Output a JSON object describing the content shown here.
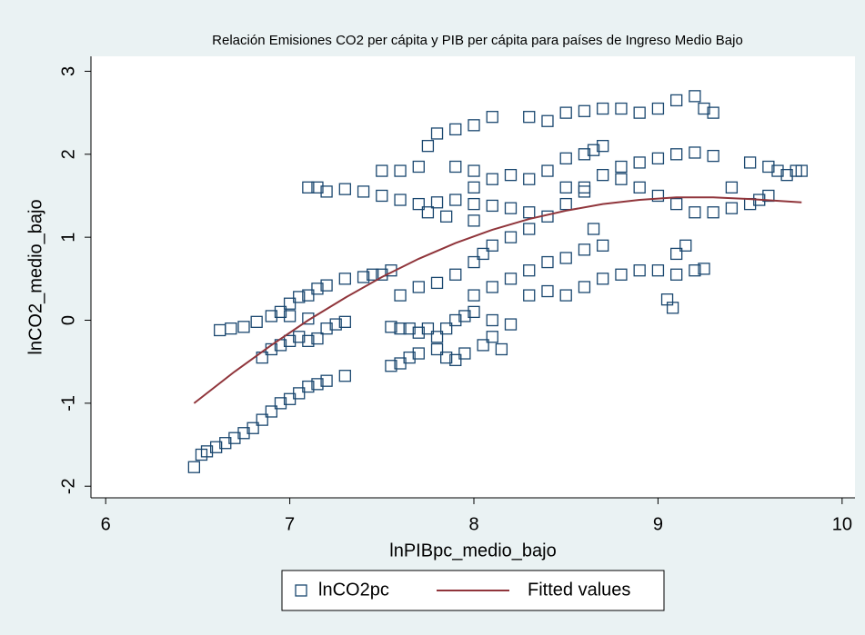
{
  "chart_data": {
    "type": "scatter",
    "title": "Relación Emisiones CO2 per cápita y PIB per cápita para países de Ingreso Medio Bajo",
    "x_label": "lnPIBpc_medio_bajo",
    "y_label": "lnCO2_medio_bajo",
    "xlim": [
      5.92,
      10.07
    ],
    "ylim": [
      -2.14,
      3.18
    ],
    "xticks": [
      6,
      7,
      8,
      9,
      10
    ],
    "yticks": [
      -2,
      -1,
      0,
      1,
      2,
      3
    ],
    "grid": false,
    "legend": "bottom",
    "series": [
      {
        "name": "lnCO2pc",
        "style": "marker",
        "color": "#1a476f",
        "x": [
          6.48,
          6.52,
          6.55,
          6.6,
          6.65,
          6.7,
          6.75,
          6.8,
          6.85,
          6.9,
          6.95,
          7.0,
          7.05,
          7.1,
          7.15,
          7.2,
          7.3,
          6.62,
          6.68,
          6.75,
          6.82,
          6.9,
          6.95,
          7.0,
          7.05,
          7.1,
          7.15,
          7.2,
          7.3,
          7.4,
          7.45,
          7.5,
          7.55,
          6.85,
          6.9,
          6.95,
          7.0,
          7.05,
          7.1,
          7.15,
          7.2,
          7.25,
          7.3,
          7.0,
          7.1,
          7.1,
          7.15,
          7.2,
          7.3,
          7.4,
          7.5,
          7.6,
          7.7,
          7.8,
          7.9,
          8.0,
          8.1,
          8.2,
          8.3,
          7.75,
          7.85,
          8.0,
          7.55,
          7.6,
          7.65,
          7.7,
          7.75,
          7.8,
          7.85,
          7.9,
          7.95,
          8.0,
          8.1,
          8.2,
          8.15,
          8.1,
          7.55,
          7.6,
          7.65,
          7.7,
          7.8,
          7.85,
          7.9,
          7.95,
          8.05,
          7.6,
          7.7,
          7.8,
          7.9,
          8.0,
          8.05,
          8.1,
          8.2,
          8.3,
          8.4,
          8.5,
          8.6,
          8.7,
          8.8,
          8.9,
          9.0,
          9.1,
          9.2,
          9.3,
          7.75,
          7.8,
          7.9,
          8.0,
          8.1,
          8.3,
          8.4,
          8.5,
          8.6,
          8.7,
          8.8,
          8.9,
          9.0,
          9.1,
          9.2,
          9.25,
          9.3,
          8.3,
          8.4,
          8.5,
          8.6,
          8.7,
          8.8,
          8.9,
          9.0,
          9.1,
          9.2,
          9.25,
          9.05,
          9.08,
          9.1,
          9.15,
          8.0,
          8.1,
          8.2,
          8.3,
          8.4,
          8.5,
          8.6,
          8.7,
          8.65,
          9.3,
          9.4,
          9.5,
          9.55,
          9.6,
          9.5,
          9.6,
          9.65,
          9.7,
          9.75,
          9.78,
          9.4,
          8.5,
          8.6,
          8.7,
          8.65,
          8.8,
          8.9,
          9.0,
          9.1,
          9.2,
          8.3,
          8.4,
          8.5,
          8.6,
          8.0,
          8.1,
          8.2,
          7.9,
          8.0,
          7.6,
          7.7,
          7.5
        ],
        "values": [
          -1.77,
          -1.62,
          -1.58,
          -1.53,
          -1.48,
          -1.42,
          -1.36,
          -1.3,
          -1.2,
          -1.1,
          -1.0,
          -0.95,
          -0.88,
          -0.8,
          -0.77,
          -0.73,
          -0.67,
          -0.12,
          -0.1,
          -0.08,
          -0.02,
          0.05,
          0.1,
          0.2,
          0.28,
          0.3,
          0.38,
          0.42,
          0.5,
          0.52,
          0.55,
          0.55,
          0.6,
          -0.45,
          -0.35,
          -0.3,
          -0.25,
          -0.2,
          -0.25,
          -0.22,
          -0.1,
          -0.05,
          -0.02,
          0.05,
          0.02,
          1.6,
          1.6,
          1.55,
          1.58,
          1.55,
          1.5,
          1.45,
          1.4,
          1.42,
          1.45,
          1.4,
          1.38,
          1.35,
          1.3,
          1.3,
          1.25,
          1.2,
          -0.08,
          -0.1,
          -0.1,
          -0.15,
          -0.1,
          -0.2,
          -0.1,
          0.0,
          0.05,
          0.1,
          0.0,
          -0.05,
          -0.35,
          -0.2,
          -0.55,
          -0.52,
          -0.45,
          -0.4,
          -0.35,
          -0.45,
          -0.48,
          -0.4,
          -0.3,
          0.3,
          0.4,
          0.45,
          0.55,
          0.7,
          0.8,
          0.9,
          1.0,
          1.1,
          1.25,
          1.4,
          1.6,
          1.75,
          1.85,
          1.9,
          1.95,
          2.0,
          2.02,
          1.98,
          2.1,
          2.25,
          2.3,
          2.35,
          2.45,
          2.45,
          2.4,
          2.5,
          2.52,
          2.55,
          2.55,
          2.5,
          2.55,
          2.65,
          2.7,
          2.55,
          2.5,
          0.3,
          0.35,
          0.3,
          0.4,
          0.5,
          0.55,
          0.6,
          0.6,
          0.55,
          0.6,
          0.62,
          0.25,
          0.15,
          0.8,
          0.9,
          0.3,
          0.4,
          0.5,
          0.6,
          0.7,
          0.75,
          0.85,
          0.9,
          1.1,
          1.3,
          1.35,
          1.4,
          1.45,
          1.5,
          1.9,
          1.85,
          1.8,
          1.75,
          1.8,
          1.8,
          1.6,
          1.95,
          2.0,
          2.1,
          2.05,
          1.7,
          1.6,
          1.5,
          1.4,
          1.3,
          1.7,
          1.8,
          1.6,
          1.55,
          1.6,
          1.7,
          1.75,
          1.85,
          1.8,
          1.8,
          1.85,
          1.8
        ]
      },
      {
        "name": "Fitted values",
        "style": "line",
        "color": "#90353b",
        "x": [
          6.48,
          6.7,
          6.9,
          7.1,
          7.3,
          7.5,
          7.7,
          7.9,
          8.1,
          8.3,
          8.5,
          8.7,
          8.9,
          9.1,
          9.3,
          9.5,
          9.78
        ],
        "values": [
          -1.0,
          -0.62,
          -0.3,
          0.0,
          0.27,
          0.52,
          0.74,
          0.93,
          1.09,
          1.22,
          1.32,
          1.4,
          1.45,
          1.48,
          1.48,
          1.46,
          1.42
        ]
      }
    ]
  }
}
